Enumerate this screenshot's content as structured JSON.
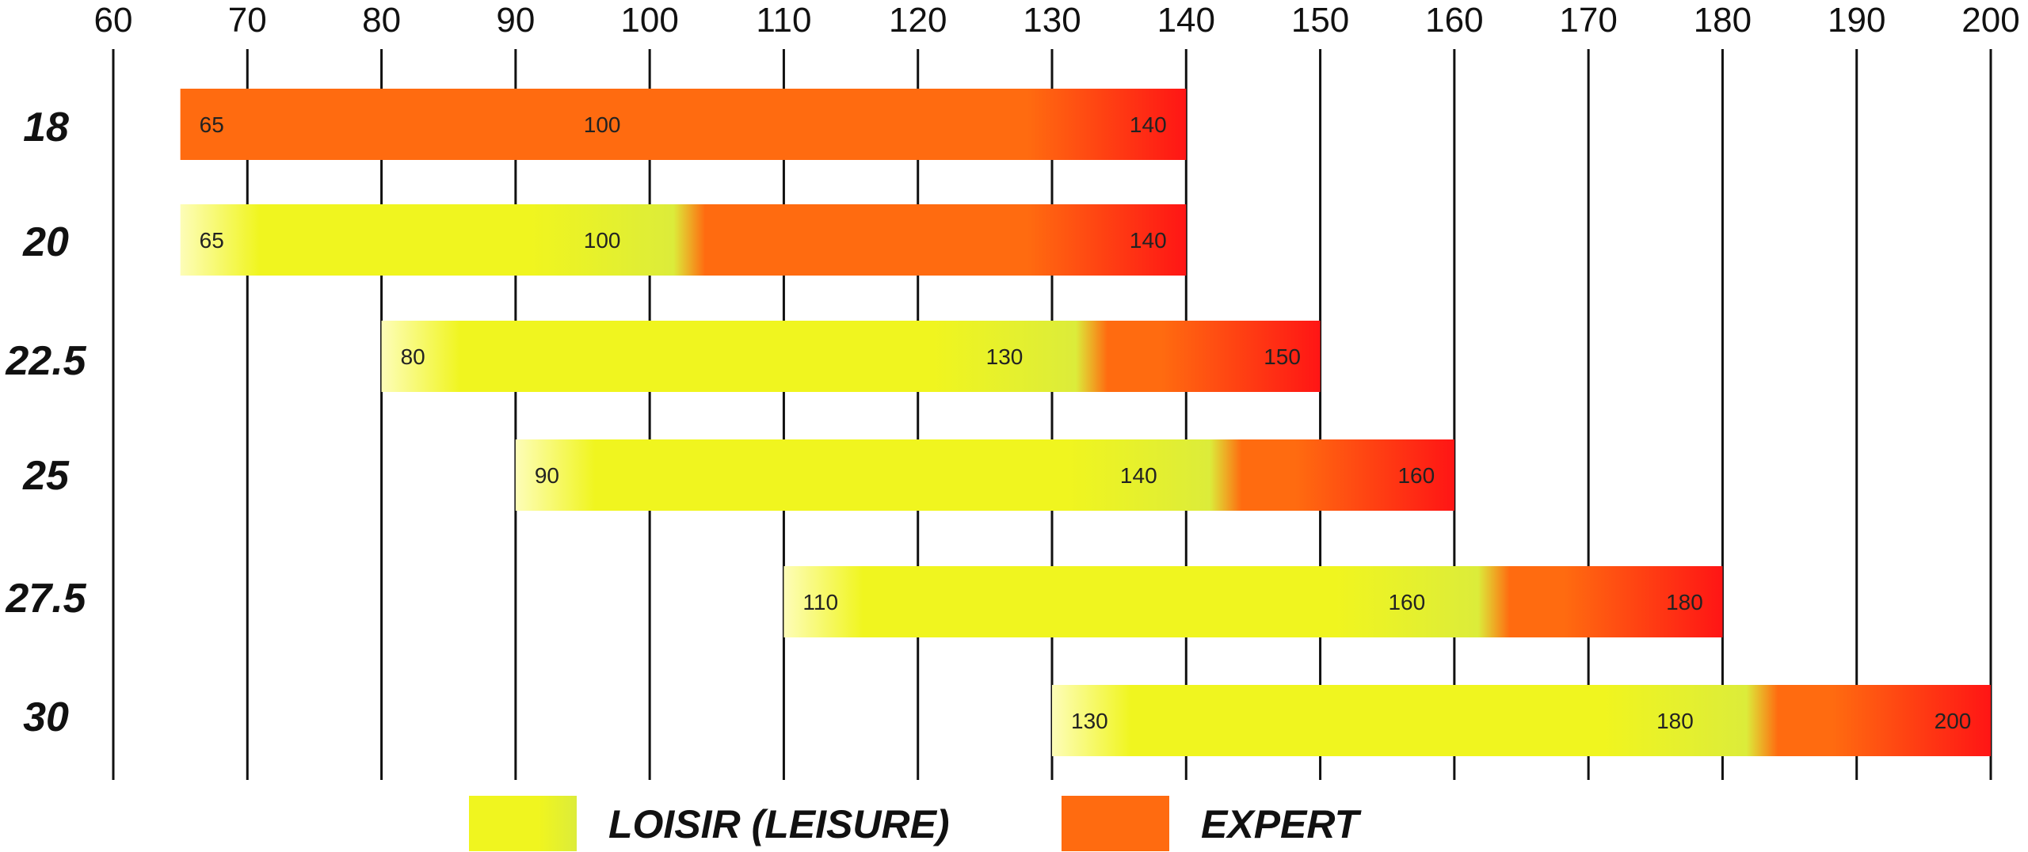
{
  "chart_data": {
    "type": "bar",
    "orientation": "horizontal",
    "x_ticks": [
      "60",
      "70",
      "80",
      "90",
      "100",
      "110",
      "120",
      "130",
      "140",
      "150",
      "160",
      "170",
      "180",
      "190",
      "200"
    ],
    "xlim": [
      60,
      200
    ],
    "grid": "vertical lines at each tick",
    "rows": [
      {
        "label": "18",
        "start": 65,
        "mid": 100,
        "end": 140,
        "start_label": "65",
        "mid_label": "100",
        "end_label": "140",
        "loisir": false
      },
      {
        "label": "20",
        "start": 65,
        "mid": 100,
        "end": 140,
        "start_label": "65",
        "mid_label": "100",
        "end_label": "140",
        "loisir": true
      },
      {
        "label": "22.5",
        "start": 80,
        "mid": 130,
        "end": 150,
        "start_label": "80",
        "mid_label": "130",
        "end_label": "150",
        "loisir": true
      },
      {
        "label": "25",
        "start": 90,
        "mid": 140,
        "end": 160,
        "start_label": "90",
        "mid_label": "140",
        "end_label": "160",
        "loisir": true
      },
      {
        "label": "27.5",
        "start": 110,
        "mid": 160,
        "end": 180,
        "start_label": "110",
        "mid_label": "160",
        "end_label": "180",
        "loisir": true
      },
      {
        "label": "30",
        "start": 130,
        "mid": 180,
        "end": 200,
        "start_label": "130",
        "mid_label": "180",
        "end_label": "200",
        "loisir": true
      }
    ],
    "legend": [
      {
        "name": "LOISIR (LEISURE)",
        "color": "#f0f51f"
      },
      {
        "name": "EXPERT",
        "color": "#ff6b10"
      }
    ],
    "legend_placement": "bottom",
    "colors": {
      "leisure": "#f0f51f",
      "leisure_light": "#fdfdb8",
      "leisure_dark": "#dcec3a",
      "expert": "#ff6b10",
      "expert_end": "#ff1515"
    }
  }
}
